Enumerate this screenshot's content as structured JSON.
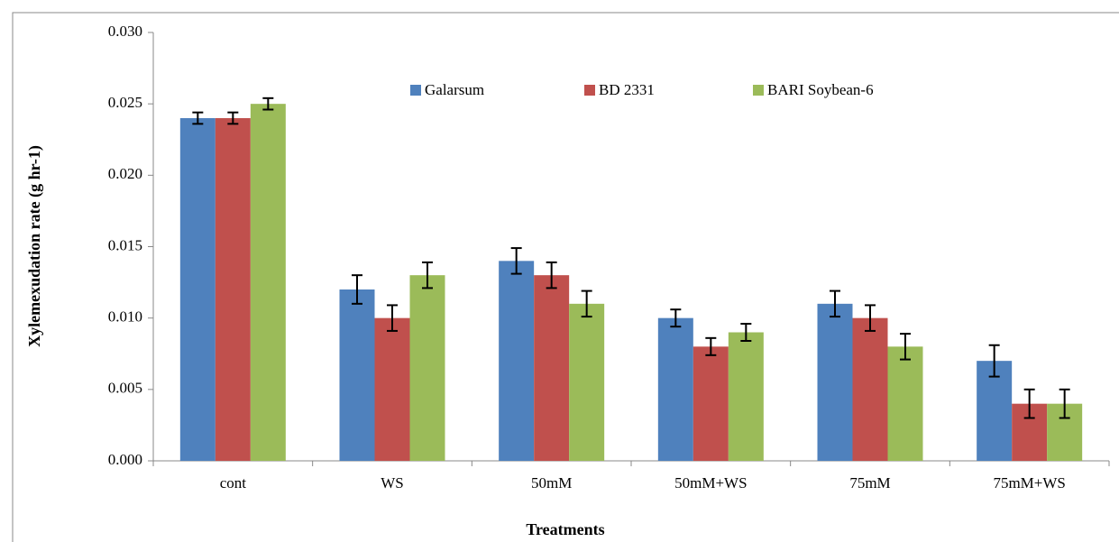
{
  "chart_data": {
    "type": "bar",
    "x_label": "Treatments",
    "y_label": "Xylemexudation rate (g hr-1)",
    "categories": [
      "cont",
      "WS",
      "50mM",
      "50mM+WS",
      "75mM",
      "75mM+WS"
    ],
    "series": [
      {
        "name": "Galarsum",
        "color": "#4f81bd",
        "values": [
          0.024,
          0.012,
          0.014,
          0.01,
          0.011,
          0.007
        ],
        "errors": [
          0.0004,
          0.001,
          0.0009,
          0.0006,
          0.0009,
          0.0011
        ]
      },
      {
        "name": "BD 2331",
        "color": "#c0504d",
        "values": [
          0.024,
          0.01,
          0.013,
          0.008,
          0.01,
          0.004
        ],
        "errors": [
          0.0004,
          0.0009,
          0.0009,
          0.0006,
          0.0009,
          0.001
        ]
      },
      {
        "name": "BARI Soybean-6",
        "color": "#9bbb59",
        "values": [
          0.025,
          0.013,
          0.011,
          0.009,
          0.008,
          0.004
        ],
        "errors": [
          0.0004,
          0.0009,
          0.0009,
          0.0006,
          0.0009,
          0.001
        ]
      }
    ],
    "ylim": [
      0,
      0.03
    ],
    "yticks": [
      {
        "value": 0,
        "label": "0.000"
      },
      {
        "value": 0.005,
        "label": "0.005"
      },
      {
        "value": 0.01,
        "label": "0.010"
      },
      {
        "value": 0.015,
        "label": "0.015"
      },
      {
        "value": 0.02,
        "label": "0.020"
      },
      {
        "value": 0.025,
        "label": "0.025"
      },
      {
        "value": 0.03,
        "label": "0.030"
      }
    ],
    "grid": false
  }
}
